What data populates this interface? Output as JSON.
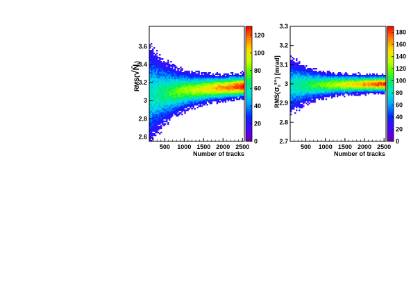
{
  "chart_data": [
    {
      "type": "heatmap",
      "xlabel": "Number of tracks",
      "ylabel": "RMS(√N̄ᵢ)",
      "ylabel_parts": {
        "prefix": "RMS(",
        "radical": "√",
        "body": "N̄",
        "sub": "i",
        "suffix": ")"
      },
      "xlim": [
        100,
        2550
      ],
      "ylim": [
        2.55,
        3.82
      ],
      "xticks": [
        500,
        1000,
        1500,
        2000,
        2500
      ],
      "yticks": [
        2.6,
        2.8,
        3.0,
        3.2,
        3.4,
        3.6
      ],
      "ytick_labels": [
        "2.6",
        "2.8",
        "3",
        "3.2",
        "3.4",
        "3.6"
      ],
      "colorbar": {
        "min": 0,
        "max": 130,
        "ticks": [
          0,
          20,
          40,
          60,
          80,
          100,
          120
        ]
      },
      "band": {
        "center_start": 3.05,
        "center_end": 3.16,
        "halfwidth_start": 0.52,
        "halfwidth_end": 0.13,
        "peak": 130
      }
    },
    {
      "type": "heatmap",
      "xlabel": "Number of tracks",
      "ylabel": "RMS(σ₀^{g.a.}) [mrad]",
      "ylabel_parts": {
        "prefix": "RMS(",
        "symbol": "σ",
        "sub": "0",
        "sup": "g.a.",
        "suffix": ") [mrad]"
      },
      "xlim": [
        100,
        2550
      ],
      "ylim": [
        2.7,
        3.3
      ],
      "xticks": [
        500,
        1000,
        1500,
        2000,
        2500
      ],
      "yticks": [
        2.7,
        2.8,
        2.9,
        3.0,
        3.1,
        3.2,
        3.3
      ],
      "ytick_labels": [
        "2.7",
        "2.8",
        "2.9",
        "3",
        "3.1",
        "3.2",
        "3.3"
      ],
      "colorbar": {
        "min": 0,
        "max": 190,
        "ticks": [
          0,
          20,
          40,
          60,
          80,
          100,
          120,
          140,
          160,
          180
        ]
      },
      "band": {
        "center_start": 2.99,
        "center_end": 3.0,
        "halfwidth_start": 0.14,
        "halfwidth_end": 0.045,
        "peak": 190
      }
    }
  ]
}
